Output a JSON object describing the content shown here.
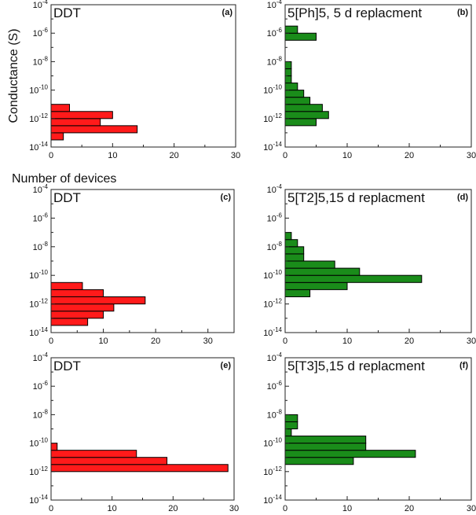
{
  "chart_data": [
    {
      "type": "bar",
      "orientation": "horizontal",
      "panel": "(a)",
      "title": "DDT",
      "ylabel": "Conductance (S)",
      "xlabel": "Number of devices",
      "xlim": [
        0,
        30
      ],
      "xticks": [
        0,
        10,
        20,
        30
      ],
      "yscale": "log",
      "ylim_exp": [
        -14,
        -4
      ],
      "yticks_exp": [
        -14,
        -12,
        -10,
        -8,
        -6,
        -4
      ],
      "color": "#ff1a1a",
      "bins": [
        {
          "lo_exp": -13.5,
          "hi_exp": -13.0,
          "count": 2
        },
        {
          "lo_exp": -13.0,
          "hi_exp": -12.5,
          "count": 14
        },
        {
          "lo_exp": -12.5,
          "hi_exp": -12.0,
          "count": 8
        },
        {
          "lo_exp": -12.0,
          "hi_exp": -11.5,
          "count": 10
        },
        {
          "lo_exp": -11.5,
          "hi_exp": -11.0,
          "count": 3
        }
      ]
    },
    {
      "type": "bar",
      "orientation": "horizontal",
      "panel": "(b)",
      "title": "5[Ph]5, 5 d replacment",
      "xlim": [
        0,
        30
      ],
      "xticks": [
        0,
        10,
        20,
        30
      ],
      "yscale": "log",
      "ylim_exp": [
        -14,
        -4
      ],
      "yticks_exp": [
        -14,
        -12,
        -10,
        -8,
        -6,
        -4
      ],
      "color": "#1a8c1a",
      "bins": [
        {
          "lo_exp": -12.5,
          "hi_exp": -12.0,
          "count": 5
        },
        {
          "lo_exp": -12.0,
          "hi_exp": -11.5,
          "count": 7
        },
        {
          "lo_exp": -11.5,
          "hi_exp": -11.0,
          "count": 6
        },
        {
          "lo_exp": -11.0,
          "hi_exp": -10.5,
          "count": 4
        },
        {
          "lo_exp": -10.5,
          "hi_exp": -10.0,
          "count": 3
        },
        {
          "lo_exp": -10.0,
          "hi_exp": -9.5,
          "count": 2
        },
        {
          "lo_exp": -9.5,
          "hi_exp": -9.0,
          "count": 1
        },
        {
          "lo_exp": -9.0,
          "hi_exp": -8.5,
          "count": 1
        },
        {
          "lo_exp": -8.5,
          "hi_exp": -8.0,
          "count": 1
        },
        {
          "lo_exp": -6.5,
          "hi_exp": -6.0,
          "count": 5
        },
        {
          "lo_exp": -6.0,
          "hi_exp": -5.5,
          "count": 2
        }
      ]
    },
    {
      "type": "bar",
      "orientation": "horizontal",
      "panel": "(c)",
      "title": "DDT",
      "xlim": [
        0,
        35
      ],
      "xticks": [
        0,
        10,
        20,
        30
      ],
      "yscale": "log",
      "ylim_exp": [
        -14,
        -4
      ],
      "yticks_exp": [
        -14,
        -12,
        -10,
        -8,
        -6,
        -4
      ],
      "color": "#ff1a1a",
      "bins": [
        {
          "lo_exp": -13.5,
          "hi_exp": -13.0,
          "count": 7
        },
        {
          "lo_exp": -13.0,
          "hi_exp": -12.5,
          "count": 10
        },
        {
          "lo_exp": -12.5,
          "hi_exp": -12.0,
          "count": 12
        },
        {
          "lo_exp": -12.0,
          "hi_exp": -11.5,
          "count": 18
        },
        {
          "lo_exp": -11.5,
          "hi_exp": -11.0,
          "count": 10
        },
        {
          "lo_exp": -11.0,
          "hi_exp": -10.5,
          "count": 6
        }
      ]
    },
    {
      "type": "bar",
      "orientation": "horizontal",
      "panel": "(d)",
      "title": "5[T2]5,15 d replacment",
      "xlim": [
        0,
        30
      ],
      "xticks": [
        0,
        10,
        20,
        30
      ],
      "yscale": "log",
      "ylim_exp": [
        -14,
        -4
      ],
      "yticks_exp": [
        -14,
        -12,
        -10,
        -8,
        -6,
        -4
      ],
      "color": "#1a8c1a",
      "bins": [
        {
          "lo_exp": -11.5,
          "hi_exp": -11.0,
          "count": 4
        },
        {
          "lo_exp": -11.0,
          "hi_exp": -10.5,
          "count": 10
        },
        {
          "lo_exp": -10.5,
          "hi_exp": -10.0,
          "count": 22
        },
        {
          "lo_exp": -10.0,
          "hi_exp": -9.5,
          "count": 12
        },
        {
          "lo_exp": -9.5,
          "hi_exp": -9.0,
          "count": 8
        },
        {
          "lo_exp": -9.0,
          "hi_exp": -8.5,
          "count": 3
        },
        {
          "lo_exp": -8.5,
          "hi_exp": -8.0,
          "count": 3
        },
        {
          "lo_exp": -8.0,
          "hi_exp": -7.5,
          "count": 2
        },
        {
          "lo_exp": -7.5,
          "hi_exp": -7.0,
          "count": 1
        }
      ]
    },
    {
      "type": "bar",
      "orientation": "horizontal",
      "panel": "(e)",
      "title": "DDT",
      "xlim": [
        0,
        30
      ],
      "xticks": [
        0,
        10,
        20,
        30
      ],
      "yscale": "log",
      "ylim_exp": [
        -14,
        -4
      ],
      "yticks_exp": [
        -14,
        -12,
        -10,
        -8,
        -6,
        -4
      ],
      "color": "#ff1a1a",
      "bins": [
        {
          "lo_exp": -12.0,
          "hi_exp": -11.5,
          "count": 29
        },
        {
          "lo_exp": -11.5,
          "hi_exp": -11.0,
          "count": 19
        },
        {
          "lo_exp": -11.0,
          "hi_exp": -10.5,
          "count": 14
        },
        {
          "lo_exp": -10.5,
          "hi_exp": -10.0,
          "count": 1
        }
      ]
    },
    {
      "type": "bar",
      "orientation": "horizontal",
      "panel": "(f)",
      "title": "5[T3]5,15 d replacment",
      "xlim": [
        0,
        30
      ],
      "xticks": [
        0,
        10,
        20,
        30
      ],
      "yscale": "log",
      "ylim_exp": [
        -14,
        -4
      ],
      "yticks_exp": [
        -14,
        -12,
        -10,
        -8,
        -6,
        -4
      ],
      "color": "#1a8c1a",
      "bins": [
        {
          "lo_exp": -11.5,
          "hi_exp": -11.0,
          "count": 11
        },
        {
          "lo_exp": -11.0,
          "hi_exp": -10.5,
          "count": 21
        },
        {
          "lo_exp": -10.5,
          "hi_exp": -10.0,
          "count": 13
        },
        {
          "lo_exp": -10.0,
          "hi_exp": -9.5,
          "count": 13
        },
        {
          "lo_exp": -9.5,
          "hi_exp": -9.0,
          "count": 1
        },
        {
          "lo_exp": -9.0,
          "hi_exp": -8.5,
          "count": 2
        },
        {
          "lo_exp": -8.5,
          "hi_exp": -8.0,
          "count": 2
        }
      ]
    }
  ]
}
